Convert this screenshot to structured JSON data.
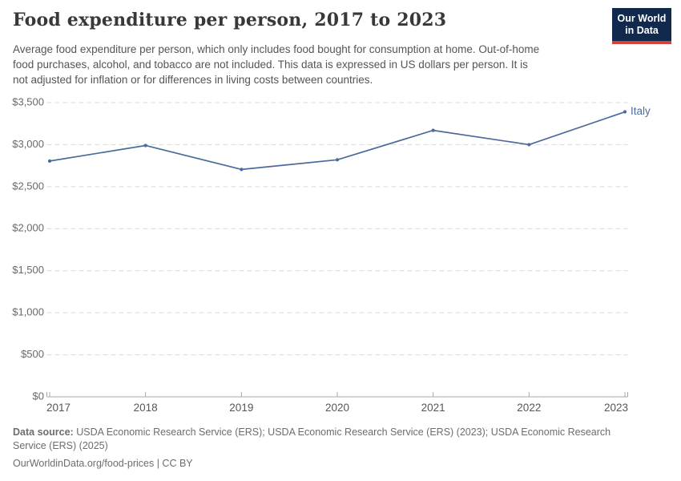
{
  "header": {
    "title": "Food expenditure per person, 2017 to 2023",
    "subtitle_lines": [
      "Average food expenditure per person, which only includes food bought for consumption at home. Out-of-home",
      "food purchases, alcohol, and tobacco are not included. This data is expressed in US dollars per person. It is",
      "not adjusted for inflation or for differences in living costs between countries."
    ],
    "logo": {
      "line1": "Our World",
      "line2": "in Data",
      "bg_color": "#12294e",
      "accent_color": "#d4403a"
    }
  },
  "chart_data": {
    "type": "line",
    "title": "Food expenditure per person, 2017 to 2023",
    "categories": [
      "2017",
      "2018",
      "2019",
      "2020",
      "2021",
      "2022",
      "2023"
    ],
    "series": [
      {
        "name": "Italy",
        "color": "#4c6a9c",
        "values": [
          2805,
          2990,
          2705,
          2820,
          3170,
          3000,
          3390
        ]
      }
    ],
    "xlabel": "",
    "ylabel": "",
    "y_axis": {
      "range": [
        0,
        3500
      ],
      "tick_values": [
        0,
        500,
        1000,
        1500,
        2000,
        2500,
        3000,
        3500
      ],
      "tick_labels": [
        "$0",
        "$500",
        "$1,000",
        "$1,500",
        "$2,000",
        "$2,500",
        "$3,000",
        "$3,500"
      ],
      "grid": "dashed"
    },
    "legend_position": "end-of-line",
    "colors": {
      "gridline": "#d9d9d9",
      "axis_line": "#a8a8a8",
      "y_tick_text": "#696969",
      "x_tick_text": "#565656"
    }
  },
  "footer": {
    "source_label": "Data source:",
    "source_text": " USDA Economic Research Service (ERS); USDA Economic Research Service (ERS) (2023); USDA Economic Research Service (ERS) (2025)",
    "license_line": "OurWorldinData.org/food-prices | CC BY"
  }
}
